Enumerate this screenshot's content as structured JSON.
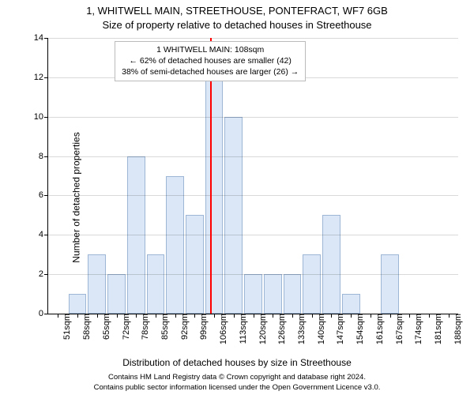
{
  "titles": {
    "line1": "1, WHITWELL MAIN, STREETHOUSE, PONTEFRACT, WF7 6GB",
    "line2": "Size of property relative to detached houses in Streethouse"
  },
  "ylabel": "Number of detached properties",
  "xlabel": "Distribution of detached houses by size in Streethouse",
  "footer": {
    "line1": "Contains HM Land Registry data © Crown copyright and database right 2024.",
    "line2": "Contains public sector information licensed under the Open Government Licence v3.0."
  },
  "chart": {
    "type": "histogram",
    "background_color": "#ffffff",
    "bar_fill": "#dbe7f6",
    "bar_stroke": "#9db6d5",
    "grid_color": "#000000",
    "grid_opacity": 0.15,
    "axis_color": "#000000",
    "text_color": "#000000",
    "refline_color": "#ff0000",
    "title_fontsize": 13,
    "label_fontsize": 12,
    "tick_fontsize": 11,
    "annotation_fontsize": 10.5,
    "footer_fontsize": 9.5,
    "ylim": [
      0,
      14
    ],
    "ytick_step": 2,
    "bar_width_rel": 0.92,
    "categories": [
      "51sqm",
      "58sqm",
      "65sqm",
      "72sqm",
      "78sqm",
      "85sqm",
      "92sqm",
      "99sqm",
      "106sqm",
      "113sqm",
      "120sqm",
      "126sqm",
      "133sqm",
      "140sqm",
      "147sqm",
      "154sqm",
      "161sqm",
      "167sqm",
      "174sqm",
      "181sqm",
      "188sqm"
    ],
    "values": [
      0,
      1,
      3,
      2,
      8,
      3,
      7,
      5,
      12,
      10,
      2,
      2,
      2,
      3,
      5,
      1,
      0,
      3,
      0,
      0,
      0
    ],
    "refline": {
      "at_category_boundary_after_index": 8,
      "fraction_within_slot": 0.3
    },
    "annotation": {
      "line1": "1 WHITWELL MAIN: 108sqm",
      "line2": "← 62% of detached houses are smaller (42)",
      "line3": "38% of semi-detached houses are larger (26) →",
      "center_on_refline": true
    }
  }
}
